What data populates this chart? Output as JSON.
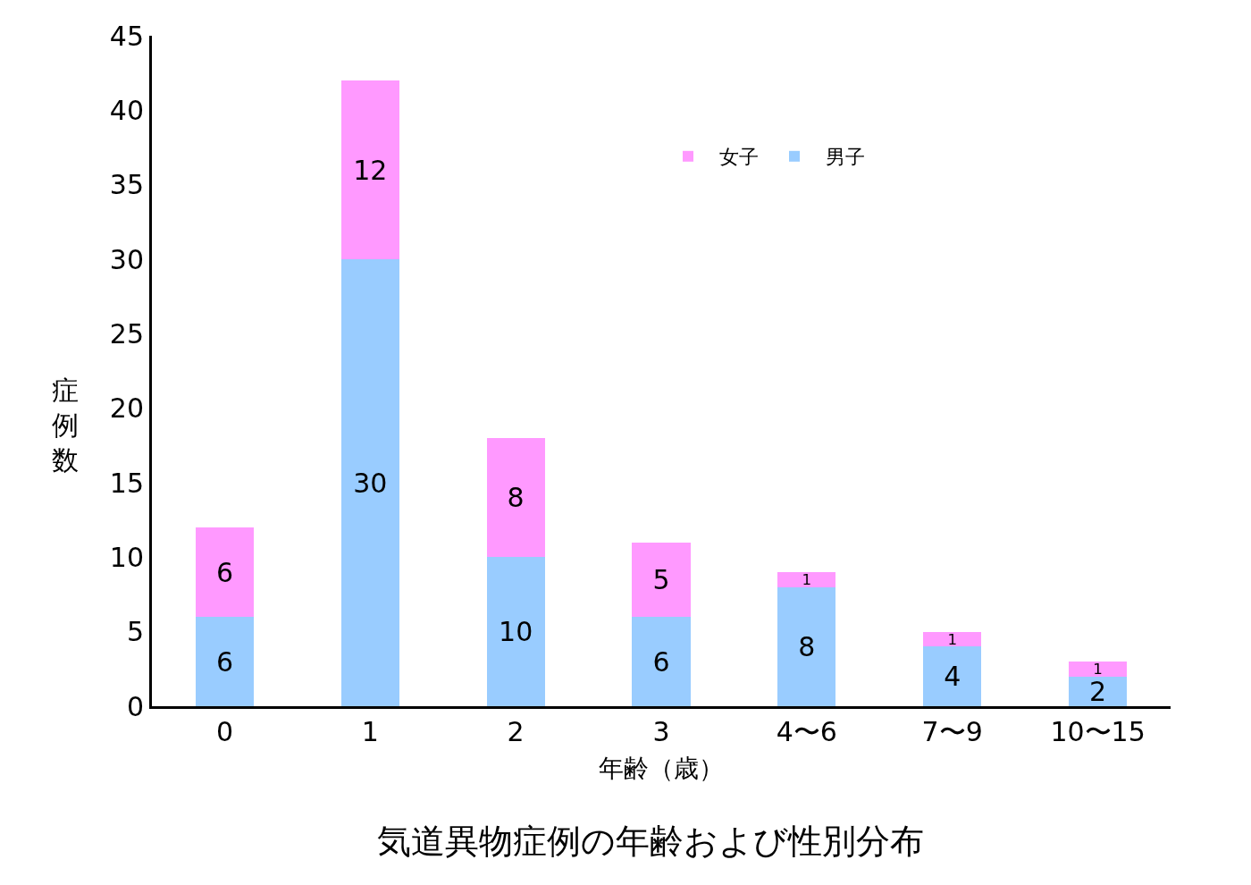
{
  "chart_data": {
    "type": "bar",
    "title": "気道異物症例の年齢および性別分布",
    "xlabel": "年齢（歳）",
    "ylabel": "症例数",
    "categories": [
      "0",
      "1",
      "2",
      "3",
      "4〜6",
      "7〜9",
      "10〜15"
    ],
    "series": [
      {
        "name": "男子",
        "color": "#99ccff",
        "values": [
          6,
          30,
          10,
          6,
          8,
          4,
          2
        ]
      },
      {
        "name": "女子",
        "color": "#ff99ff",
        "values": [
          6,
          12,
          8,
          5,
          1,
          1,
          1
        ]
      }
    ],
    "stacked": true,
    "data_labels": true,
    "legend": "top",
    "ylim": [
      0,
      45
    ],
    "yticks": [
      0,
      5,
      10,
      15,
      20,
      25,
      30,
      35,
      40,
      45
    ]
  }
}
